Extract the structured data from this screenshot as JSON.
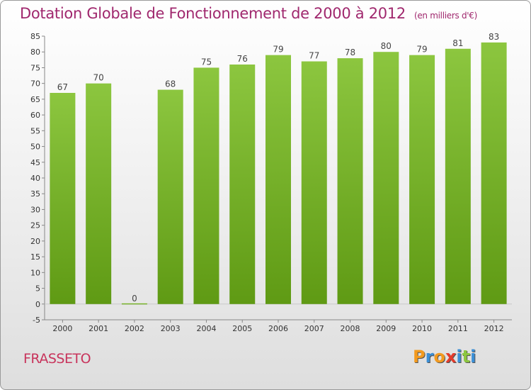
{
  "chart_data": {
    "type": "bar",
    "title": "Dotation Globale de Fonctionnement de 2000 à 2012",
    "unit_label": "(en milliers d'€)",
    "categories": [
      "2000",
      "2001",
      "2002",
      "2003",
      "2004",
      "2005",
      "2006",
      "2007",
      "2008",
      "2009",
      "2010",
      "2011",
      "2012"
    ],
    "values": [
      67,
      70,
      0,
      68,
      75,
      76,
      79,
      77,
      78,
      80,
      79,
      81,
      83
    ],
    "ylim": [
      -5,
      85
    ],
    "ytick_step": 5,
    "grid": false,
    "bar_color_top": "#8cc63f",
    "bar_color_bottom": "#5f9a14"
  },
  "commune": "FRASSETO",
  "brand": {
    "letters": [
      "P",
      "r",
      "o",
      "x",
      "i",
      "t",
      "i"
    ],
    "colors": [
      "#f39a1e",
      "#3b8fd6",
      "#f39a1e",
      "#e43b2c",
      "#3b8fd6",
      "#8cc63f",
      "#3b8fd6"
    ]
  }
}
